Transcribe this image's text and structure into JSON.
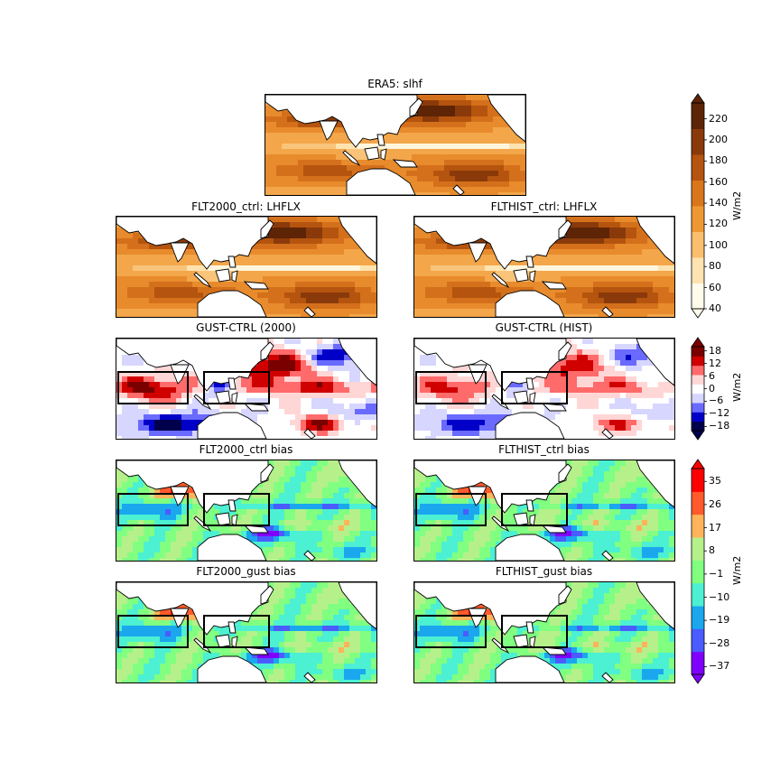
{
  "chart_data": [
    {
      "type": "heatmap",
      "title": "ERA5: slhf",
      "colormap": "orange-brown",
      "region": "Indo-Pacific",
      "boxes": false
    },
    {
      "type": "heatmap",
      "title": "FLT2000_ctrl: LHFLX",
      "colormap": "orange-brown",
      "region": "Indo-Pacific",
      "boxes": false
    },
    {
      "type": "heatmap",
      "title": "FLTHIST_ctrl: LHFLX",
      "colormap": "orange-brown",
      "region": "Indo-Pacific",
      "boxes": false
    },
    {
      "type": "heatmap",
      "title": "GUST-CTRL (2000)",
      "colormap": "blue-white-red",
      "region": "Indo-Pacific",
      "boxes": true
    },
    {
      "type": "heatmap",
      "title": "GUST-CTRL (HIST)",
      "colormap": "blue-white-red",
      "region": "Indo-Pacific",
      "boxes": true
    },
    {
      "type": "heatmap",
      "title": "FLT2000_ctrl bias",
      "colormap": "rainbow",
      "region": "Indo-Pacific",
      "boxes": true
    },
    {
      "type": "heatmap",
      "title": "FLTHIST_ctrl bias",
      "colormap": "rainbow",
      "region": "Indo-Pacific",
      "boxes": true
    },
    {
      "type": "heatmap",
      "title": "FLT2000_gust bias",
      "colormap": "rainbow",
      "region": "Indo-Pacific",
      "boxes": true
    },
    {
      "type": "heatmap",
      "title": "FLTHIST_gust bias",
      "colormap": "rainbow",
      "region": "Indo-Pacific",
      "boxes": true
    }
  ],
  "colorbars": [
    {
      "label": "W/m2",
      "ticks": [
        "220",
        "200",
        "180",
        "160",
        "140",
        "120",
        "100",
        "80",
        "60",
        "40"
      ],
      "range": [
        40,
        235
      ],
      "colors": [
        "#fffbea",
        "#fde3b0",
        "#f9bf6c",
        "#ef9833",
        "#d9761b",
        "#b4540e",
        "#8a3a0a",
        "#5e2406"
      ]
    },
    {
      "label": "W/m2",
      "ticks": [
        "18",
        "12",
        "6",
        "0",
        "−6",
        "−12",
        "−18"
      ],
      "range": [
        -20,
        20
      ],
      "colors": [
        "#00004c",
        "#0000c8",
        "#6a6aff",
        "#d6d6ff",
        "#ffffff",
        "#ffd6d6",
        "#ff6a6a",
        "#d00000",
        "#7a0000"
      ]
    },
    {
      "label": "W/m2",
      "ticks": [
        "35",
        "26",
        "17",
        "8",
        "−1",
        "−10",
        "−19",
        "−28",
        "−37"
      ],
      "range": [
        -40,
        40
      ],
      "colors": [
        "#8000ff",
        "#4a5cff",
        "#1aa7ee",
        "#4cf0d2",
        "#80ff80",
        "#b6f08a",
        "#ffb35a",
        "#ff5a2c",
        "#ff0000"
      ]
    }
  ]
}
